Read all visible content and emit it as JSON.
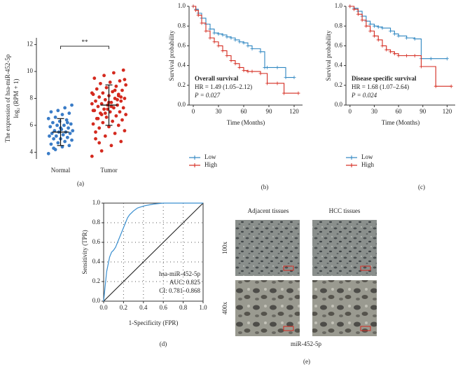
{
  "chart_data": [
    {
      "type": "strip",
      "panel_label": "(a)",
      "ylabel": [
        "The expression of hsa-miR-452-5p",
        "log₂ (RPM + 1)"
      ],
      "categories": [
        "Normal",
        "Tumor"
      ],
      "groups": [
        {
          "color": "#3a7cc7",
          "mean": 5.5,
          "sd": 1.0,
          "values": [
            3.9,
            4.2,
            4.4,
            4.5,
            4.6,
            4.7,
            4.8,
            4.9,
            5.0,
            5.0,
            5.1,
            5.2,
            5.2,
            5.3,
            5.4,
            5.4,
            5.5,
            5.5,
            5.6,
            5.6,
            5.7,
            5.8,
            5.9,
            6.0,
            6.0,
            6.1,
            6.2,
            6.3,
            6.4,
            6.5,
            6.6,
            6.8,
            6.9,
            7.0,
            7.1,
            7.3,
            7.5,
            4.3,
            5.8,
            6.2
          ]
        },
        {
          "color": "#d42a1f",
          "mean": 7.5,
          "sd": 1.5,
          "values": [
            3.7,
            4.1,
            4.5,
            4.8,
            5.0,
            5.2,
            5.4,
            5.6,
            5.8,
            5.9,
            6.0,
            6.1,
            6.2,
            6.3,
            6.4,
            6.5,
            6.6,
            6.7,
            6.8,
            6.9,
            7.0,
            7.0,
            7.1,
            7.2,
            7.3,
            7.3,
            7.4,
            7.5,
            7.5,
            7.6,
            7.6,
            7.7,
            7.8,
            7.8,
            7.9,
            8.0,
            8.0,
            8.1,
            8.2,
            8.2,
            8.3,
            8.4,
            8.5,
            8.6,
            8.7,
            8.8,
            8.9,
            9.0,
            9.1,
            9.2,
            9.3,
            9.5,
            9.7,
            9.9,
            10.1,
            6.5,
            7.2,
            7.9,
            8.4,
            6.8,
            7.4,
            8.1,
            5.5,
            6.9,
            8.6,
            9.4,
            4.7,
            7.7,
            8.3,
            7.1
          ]
        }
      ],
      "significance": "**",
      "ylim": [
        3.5,
        12.5
      ],
      "yticks": [
        4,
        6,
        8,
        10,
        12
      ]
    },
    {
      "type": "survival",
      "panel_label": "(b)",
      "xlabel": "Time (Months)",
      "ylabel": "Survival probability",
      "annotations": [
        "Overall survival",
        "HR = 1.49 (1.05–2.12)",
        "P = 0.027"
      ],
      "legend": "bottom",
      "series": [
        {
          "name": "Low",
          "color": "#2e86c1",
          "x": [
            0,
            3,
            6,
            10,
            15,
            20,
            25,
            30,
            35,
            40,
            45,
            50,
            55,
            60,
            65,
            70,
            80,
            85,
            88,
            100,
            110,
            120
          ],
          "values": [
            1,
            0.97,
            0.93,
            0.88,
            0.82,
            0.77,
            0.73,
            0.72,
            0.71,
            0.69,
            0.68,
            0.66,
            0.64,
            0.63,
            0.6,
            0.57,
            0.54,
            0.38,
            0.38,
            0.38,
            0.28,
            0.28
          ]
        },
        {
          "name": "High",
          "color": "#d42a1f",
          "x": [
            0,
            3,
            6,
            10,
            15,
            20,
            25,
            30,
            35,
            40,
            45,
            50,
            55,
            60,
            65,
            70,
            80,
            88,
            100,
            108,
            125
          ],
          "values": [
            1,
            0.96,
            0.91,
            0.83,
            0.75,
            0.68,
            0.64,
            0.6,
            0.55,
            0.5,
            0.45,
            0.42,
            0.38,
            0.35,
            0.34,
            0.34,
            0.32,
            0.22,
            0.22,
            0.12,
            0.12
          ]
        }
      ],
      "xlim": [
        -5,
        130
      ],
      "xticks": [
        0,
        30,
        60,
        90,
        120
      ],
      "ylim": [
        0,
        1
      ],
      "yticks": [
        {
          "value": 0,
          "label": "0.0"
        },
        0.2,
        0.4,
        0.6,
        0.8,
        {
          "value": 1,
          "label": "1.0"
        }
      ]
    },
    {
      "type": "survival",
      "panel_label": "(c)",
      "xlabel": "Time (Months)",
      "ylabel": "Survival probability",
      "annotations": [
        "Disease specific survival",
        "HR = 1.68 (1.07–2.64)",
        "P = 0.024"
      ],
      "legend": "bottom",
      "series": [
        {
          "name": "Low",
          "color": "#2e86c1",
          "x": [
            0,
            5,
            10,
            15,
            20,
            25,
            30,
            35,
            40,
            50,
            55,
            60,
            70,
            80,
            88,
            100,
            120
          ],
          "values": [
            1,
            0.98,
            0.95,
            0.9,
            0.85,
            0.82,
            0.8,
            0.79,
            0.78,
            0.75,
            0.72,
            0.7,
            0.68,
            0.67,
            0.47,
            0.47,
            0.47
          ]
        },
        {
          "name": "High",
          "color": "#d42a1f",
          "x": [
            0,
            5,
            10,
            15,
            20,
            25,
            30,
            35,
            40,
            45,
            50,
            55,
            60,
            70,
            80,
            88,
            106,
            125
          ],
          "values": [
            1,
            0.97,
            0.92,
            0.86,
            0.8,
            0.75,
            0.7,
            0.66,
            0.6,
            0.56,
            0.54,
            0.52,
            0.5,
            0.5,
            0.5,
            0.39,
            0.19,
            0.19
          ]
        }
      ],
      "xlim": [
        -5,
        130
      ],
      "xticks": [
        0,
        30,
        60,
        90,
        120
      ],
      "ylim": [
        0,
        1
      ],
      "yticks": [
        {
          "value": 0,
          "label": "0.0"
        },
        0.2,
        0.4,
        0.6,
        0.8,
        {
          "value": 1,
          "label": "1.0"
        }
      ]
    },
    {
      "type": "roc",
      "panel_label": "(d)",
      "xlabel": "1-Specificity (FPR)",
      "ylabel": "Sensitivity (TPR)",
      "annotations": [
        "hsa-miR-452-5p",
        "AUC: 0.825",
        "CI: 0.781–0.868"
      ],
      "color": "#3a8fd0",
      "grid": "dotted",
      "x": [
        0,
        0.01,
        0.02,
        0.03,
        0.04,
        0.05,
        0.06,
        0.08,
        0.1,
        0.12,
        0.14,
        0.16,
        0.18,
        0.2,
        0.22,
        0.24,
        0.26,
        0.3,
        0.34,
        0.4,
        0.5,
        0.6,
        0.8,
        1.0
      ],
      "values": [
        0,
        0.1,
        0.2,
        0.3,
        0.35,
        0.4,
        0.45,
        0.5,
        0.52,
        0.55,
        0.6,
        0.65,
        0.7,
        0.75,
        0.8,
        0.85,
        0.88,
        0.92,
        0.95,
        0.97,
        0.99,
        1,
        1,
        1
      ],
      "xlim": [
        0,
        1
      ],
      "xticks": [
        {
          "value": 0,
          "label": "0.0"
        },
        0.2,
        0.4,
        0.6,
        0.8,
        {
          "value": 1,
          "label": "1.0"
        }
      ],
      "ylim": [
        0,
        1
      ],
      "yticks": [
        {
          "value": 0,
          "label": "0.0"
        },
        0.2,
        0.4,
        0.6,
        0.8,
        {
          "value": 1,
          "label": "1.0"
        }
      ]
    },
    {
      "type": "image-grid",
      "panel_label": "(e)",
      "columns": [
        "Adjacent tissues",
        "HCC tissues"
      ],
      "rows": [
        "100x",
        "400x"
      ],
      "caption": "miR-452-5p"
    }
  ]
}
